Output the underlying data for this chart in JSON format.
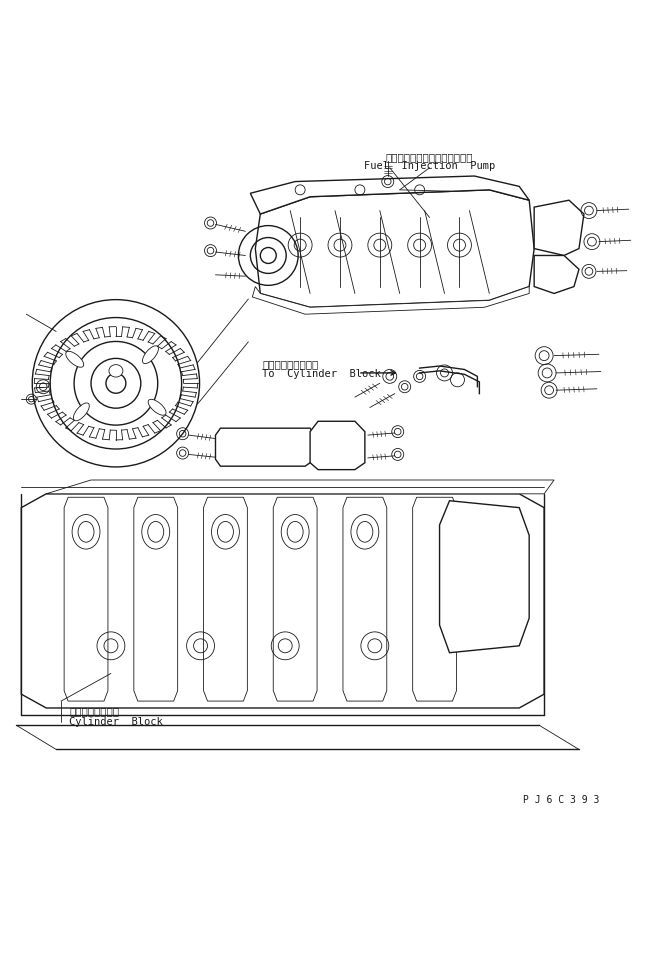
{
  "bg_color": "#ffffff",
  "line_color": "#1a1a1a",
  "fig_width": 6.66,
  "fig_height": 9.6,
  "dpi": 100,
  "label_fuel_jp": "フェルインジェクションポンプ",
  "label_fuel_en": "Fuel  Injection  Pump",
  "label_cylinder_jp": "シリンダブロックへ",
  "label_cylinder_en": "To  Cylinder  Block",
  "label_cyl_block_jp": "シリンダブロック",
  "label_cyl_block_en": "Cylinder  Block",
  "part_number": "P J 6 C 3 9 3",
  "lw": 1.0,
  "lw_thin": 0.6,
  "lw_thick": 1.4
}
